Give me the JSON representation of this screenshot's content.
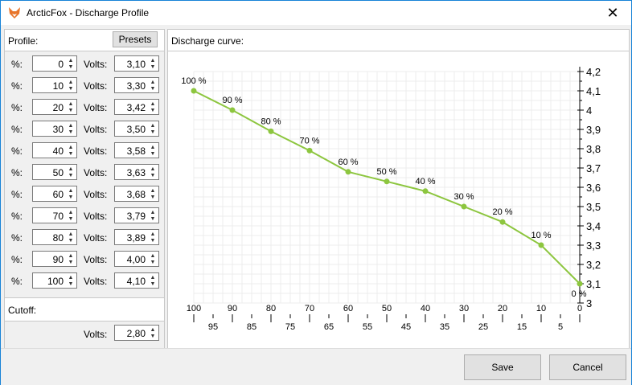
{
  "window": {
    "title": "ArcticFox - Discharge Profile"
  },
  "profile": {
    "label": "Profile:",
    "presets_label": "Presets"
  },
  "row_labels": {
    "pct": "%:",
    "volts": "Volts:"
  },
  "rows": [
    {
      "pct": "0",
      "volts": "3,10"
    },
    {
      "pct": "10",
      "volts": "3,30"
    },
    {
      "pct": "20",
      "volts": "3,42"
    },
    {
      "pct": "30",
      "volts": "3,50"
    },
    {
      "pct": "40",
      "volts": "3,58"
    },
    {
      "pct": "50",
      "volts": "3,63"
    },
    {
      "pct": "60",
      "volts": "3,68"
    },
    {
      "pct": "70",
      "volts": "3,79"
    },
    {
      "pct": "80",
      "volts": "3,89"
    },
    {
      "pct": "90",
      "volts": "4,00"
    },
    {
      "pct": "100",
      "volts": "4,10"
    }
  ],
  "cutoff": {
    "label": "Cutoff:",
    "volts_label": "Volts:",
    "volts": "2,80"
  },
  "curve": {
    "label": "Discharge curve:"
  },
  "chart_data": {
    "type": "line",
    "title": "",
    "xlabel": "",
    "ylabel": "",
    "x_reversed": true,
    "xlim": [
      0,
      100
    ],
    "ylim": [
      3,
      4.2
    ],
    "x_major_ticks": [
      "100",
      "90",
      "80",
      "70",
      "60",
      "50",
      "40",
      "30",
      "20",
      "10",
      "0"
    ],
    "x_minor_ticks": [
      "95",
      "85",
      "75",
      "65",
      "55",
      "45",
      "35",
      "25",
      "15",
      "5"
    ],
    "y_ticks": [
      "3",
      "3,1",
      "3,2",
      "3,3",
      "3,4",
      "3,5",
      "3,6",
      "3,7",
      "3,8",
      "3,9",
      "4",
      "4,1",
      "4,2"
    ],
    "y_axis_side": "right",
    "grid": true,
    "line_color": "#8dc63f",
    "points": [
      {
        "x": 100,
        "y": 4.1,
        "label": "100 %"
      },
      {
        "x": 90,
        "y": 4.0,
        "label": "90 %"
      },
      {
        "x": 80,
        "y": 3.89,
        "label": "80 %"
      },
      {
        "x": 70,
        "y": 3.79,
        "label": "70 %"
      },
      {
        "x": 60,
        "y": 3.68,
        "label": "60 %"
      },
      {
        "x": 50,
        "y": 3.63,
        "label": "50 %"
      },
      {
        "x": 40,
        "y": 3.58,
        "label": "40 %"
      },
      {
        "x": 30,
        "y": 3.5,
        "label": "30 %"
      },
      {
        "x": 20,
        "y": 3.42,
        "label": "20 %"
      },
      {
        "x": 10,
        "y": 3.3,
        "label": "10 %"
      },
      {
        "x": 0,
        "y": 3.1,
        "label": "0 %"
      }
    ]
  },
  "buttons": {
    "save": "Save",
    "cancel": "Cancel"
  }
}
